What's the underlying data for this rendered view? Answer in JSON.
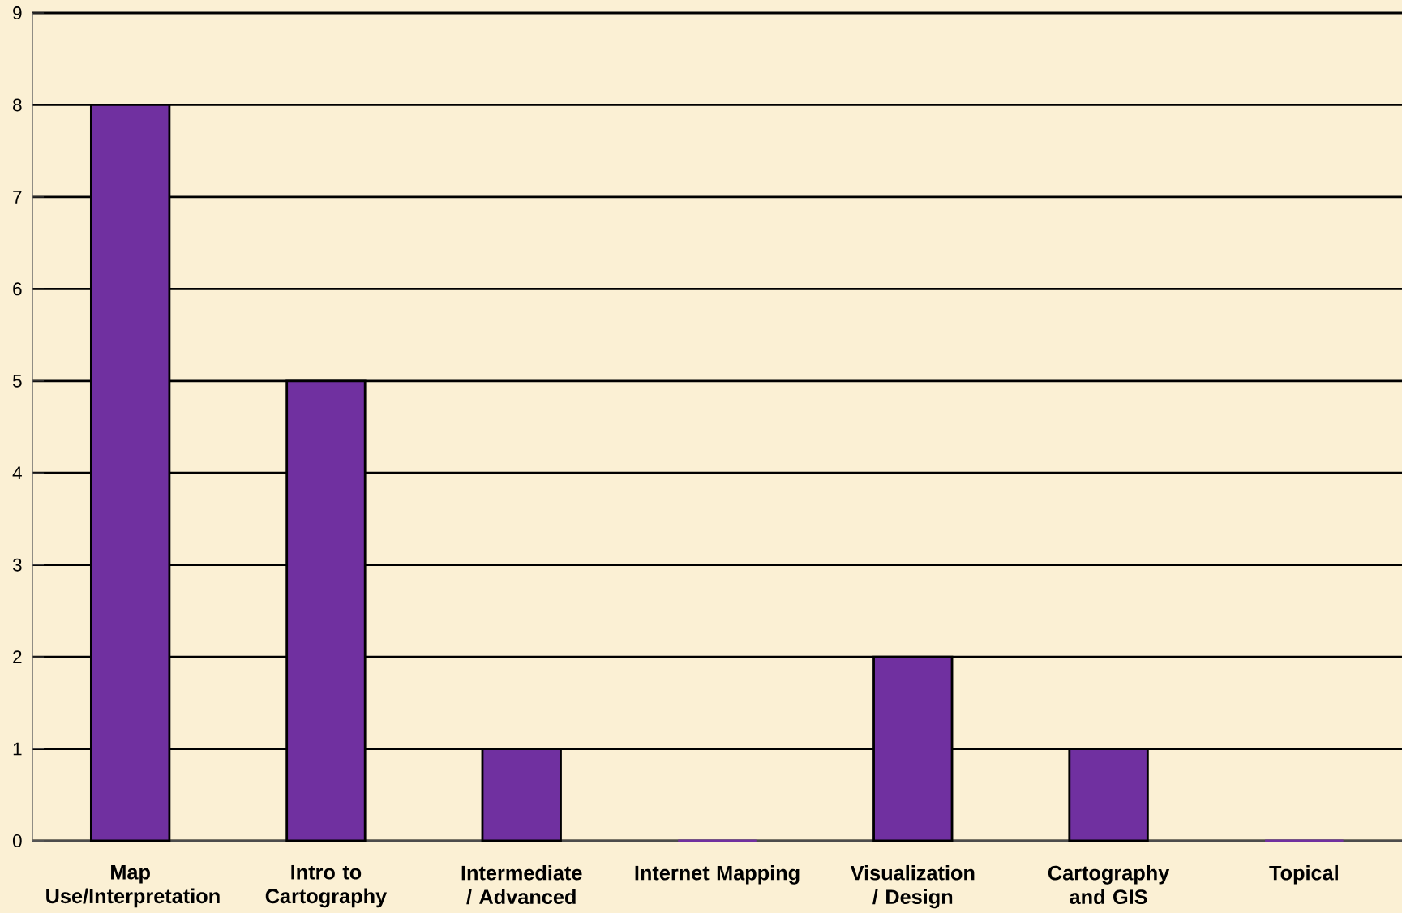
{
  "chart_data": {
    "type": "bar",
    "categories": [
      "Map Use/Interpretation",
      "Intro to Cartography",
      "Intermediate / Advanced",
      "Internet Mapping",
      "Visualization / Design",
      "Cartography and GIS",
      "Topical"
    ],
    "values": [
      8,
      5,
      1,
      0,
      2,
      1,
      0
    ],
    "color": "#7030a0",
    "ylim": [
      0,
      9
    ],
    "yticks": [
      0,
      1,
      2,
      3,
      4,
      5,
      6,
      7,
      8,
      9
    ],
    "grid": "y"
  }
}
